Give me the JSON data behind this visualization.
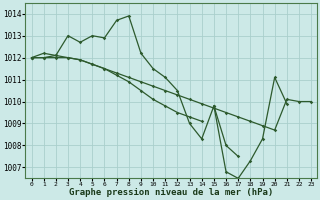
{
  "bg_color": "#cce9e7",
  "grid_color": "#aacfcc",
  "line_color": "#2d5a2d",
  "title": "Graphe pression niveau de la mer (hPa)",
  "ylabel_values": [
    1007,
    1008,
    1009,
    1010,
    1011,
    1012,
    1013,
    1014
  ],
  "xlabel_values": [
    0,
    1,
    2,
    3,
    4,
    5,
    6,
    7,
    8,
    9,
    10,
    11,
    12,
    13,
    14,
    15,
    16,
    17,
    18,
    19,
    20,
    21,
    22,
    23
  ],
  "xlim": [
    -0.5,
    23.5
  ],
  "ylim": [
    1006.5,
    1014.5
  ],
  "series": [
    [
      1012.0,
      1012.0,
      1012.1,
      1013.0,
      1012.7,
      1013.0,
      1012.9,
      1013.7,
      1013.9,
      1012.2,
      1011.5,
      1011.1,
      1010.5,
      1009.0,
      1008.3,
      1009.8,
      1008.0,
      1007.5,
      null,
      null,
      null,
      null,
      null,
      null
    ],
    [
      1012.0,
      1012.2,
      1012.1,
      1012.0,
      1011.9,
      1011.7,
      1011.5,
      1011.3,
      1011.1,
      1010.9,
      1010.7,
      1010.5,
      1010.3,
      1010.1,
      1009.9,
      1009.7,
      1009.5,
      1009.3,
      1009.1,
      1008.9,
      1008.7,
      1010.1,
      1010.0,
      1010.0
    ],
    [
      1012.0,
      1012.0,
      1012.0,
      1012.0,
      1011.9,
      1011.7,
      1011.5,
      1011.2,
      1010.9,
      1010.5,
      1010.1,
      1009.8,
      1009.5,
      1009.3,
      1009.1,
      null,
      null,
      null,
      null,
      null,
      null,
      null,
      null,
      null
    ],
    [
      null,
      null,
      null,
      null,
      null,
      null,
      null,
      null,
      null,
      null,
      null,
      null,
      null,
      null,
      null,
      1009.8,
      1006.8,
      1006.5,
      1007.3,
      1008.3,
      1011.1,
      1009.9,
      null,
      null
    ]
  ]
}
